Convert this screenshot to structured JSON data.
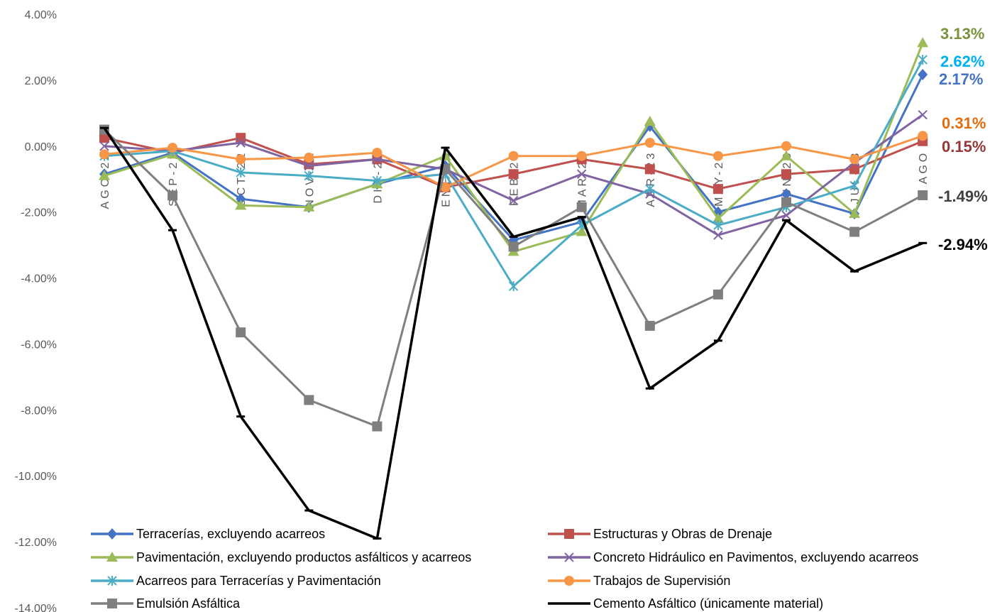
{
  "chart_data": {
    "type": "line",
    "title": "",
    "xlabel": "",
    "ylabel": "",
    "ylim": [
      -14,
      4
    ],
    "y_ticks": [
      "4.00%",
      "2.00%",
      "0.00%",
      "-2.00%",
      "-4.00%",
      "-6.00%",
      "-8.00%",
      "-10.00%",
      "-12.00%",
      "-14.00%"
    ],
    "categories": [
      "AGO-22",
      "SEP-22",
      "OCT-22",
      "NOV-22",
      "DIC-22",
      "ENE-23",
      "FEB-23",
      "MAR-23",
      "ABR-23",
      "MAY-23",
      "JUN-23",
      "JUL-23",
      "AGO"
    ],
    "grid": false,
    "legend_position": "bottom",
    "series": [
      {
        "name": "Terracerías, excluyendo acarreos",
        "color": "#4472C4",
        "marker": "diamond",
        "values": [
          -0.85,
          -0.2,
          -1.6,
          -1.85,
          -1.15,
          -0.6,
          -2.85,
          -2.3,
          0.6,
          -2.0,
          -1.45,
          -2.05,
          2.17
        ],
        "end_label": "2.17%"
      },
      {
        "name": "Estructuras y Obras de Drenaje",
        "color": "#C0504D",
        "marker": "square",
        "values": [
          0.25,
          -0.2,
          0.25,
          -0.55,
          -0.4,
          -1.25,
          -0.85,
          -0.4,
          -0.7,
          -1.3,
          -0.85,
          -0.7,
          0.15
        ],
        "end_label": "0.15%"
      },
      {
        "name": "Pavimentación, excluyendo productos asfálticos y acarreos",
        "color": "#9BBB59",
        "marker": "triangle",
        "values": [
          -0.9,
          -0.25,
          -1.8,
          -1.85,
          -1.15,
          -0.3,
          -3.2,
          -2.6,
          0.75,
          -2.2,
          -0.3,
          -2.05,
          3.13
        ],
        "end_label": "3.13%"
      },
      {
        "name": "Concreto Hidráulico en Pavimentos, excluyendo acarreos",
        "color": "#8064A2",
        "marker": "x",
        "values": [
          0.0,
          -0.15,
          0.1,
          -0.6,
          -0.4,
          -0.7,
          -1.65,
          -0.85,
          -1.45,
          -2.7,
          -2.1,
          -0.5,
          0.95
        ],
        "end_label": ""
      },
      {
        "name": "Acarreos para Terracerías y Pavimentación",
        "color": "#4BACC6",
        "marker": "star",
        "values": [
          -0.3,
          -0.15,
          -0.8,
          -0.9,
          -1.05,
          -0.85,
          -4.25,
          -2.4,
          -1.3,
          -2.4,
          -1.85,
          -1.2,
          2.62
        ],
        "end_label": "2.62%"
      },
      {
        "name": "Trabajos de Supervisión",
        "color": "#F79646",
        "marker": "circle",
        "values": [
          -0.25,
          -0.05,
          -0.4,
          -0.35,
          -0.2,
          -1.25,
          -0.3,
          -0.3,
          0.1,
          -0.3,
          0.0,
          -0.4,
          0.31
        ],
        "end_label": "0.31%"
      },
      {
        "name": "Emulsión Asfáltica",
        "color": "#7F7F7F",
        "marker": "square",
        "values": [
          0.5,
          -1.5,
          -5.65,
          -7.7,
          -8.5,
          -0.7,
          -3.05,
          -1.85,
          -5.45,
          -4.5,
          -1.7,
          -2.6,
          -1.49
        ],
        "end_label": "-1.49%"
      },
      {
        "name": "Cemento Asfáltico (únicamente material)",
        "color": "#000000",
        "marker": "dash",
        "values": [
          0.55,
          -2.55,
          -8.2,
          -11.05,
          -11.9,
          -0.05,
          -2.75,
          -2.15,
          -7.35,
          -5.9,
          -2.25,
          -3.8,
          -2.94
        ],
        "end_label": "-2.94%"
      }
    ],
    "end_label_colors": {
      "pavimentacion": "#77933C",
      "acarreos": "#00B0F0",
      "terracerias": "#4472C4",
      "supervision": "#E46C0A",
      "estructuras": "#953735",
      "emulsion": "#404040",
      "cemento": "#000000"
    }
  }
}
